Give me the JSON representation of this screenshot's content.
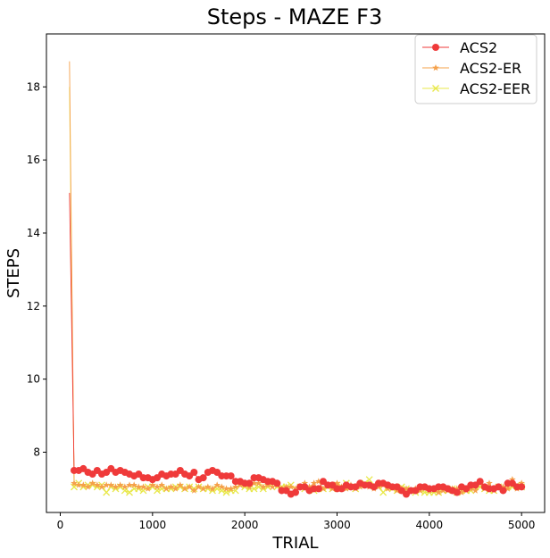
{
  "chart_data": {
    "type": "line",
    "title": "Steps - MAZE F3",
    "xlabel": "TRIAL",
    "ylabel": "STEPS",
    "xlim": [
      -150,
      5250
    ],
    "ylim": [
      6.35,
      19.45
    ],
    "xticks": [
      0,
      1000,
      2000,
      3000,
      4000,
      5000
    ],
    "yticks": [
      8,
      10,
      12,
      14,
      16,
      18
    ],
    "xtick_labels": [
      "0",
      "1000",
      "2000",
      "3000",
      "4000",
      "5000"
    ],
    "ytick_labels": [
      "8",
      "10",
      "12",
      "14",
      "16",
      "18"
    ],
    "grid": false,
    "legend_position": "top-right",
    "x": [
      100,
      150,
      200,
      250,
      300,
      350,
      400,
      450,
      500,
      550,
      600,
      650,
      700,
      750,
      800,
      850,
      900,
      950,
      1000,
      1050,
      1100,
      1150,
      1200,
      1250,
      1300,
      1350,
      1400,
      1450,
      1500,
      1550,
      1600,
      1650,
      1700,
      1750,
      1800,
      1850,
      1900,
      1950,
      2000,
      2050,
      2100,
      2150,
      2200,
      2250,
      2300,
      2350,
      2400,
      2450,
      2500,
      2550,
      2600,
      2650,
      2700,
      2750,
      2800,
      2850,
      2900,
      2950,
      3000,
      3050,
      3100,
      3150,
      3200,
      3250,
      3300,
      3350,
      3400,
      3450,
      3500,
      3550,
      3600,
      3650,
      3700,
      3750,
      3800,
      3850,
      3900,
      3950,
      4000,
      4050,
      4100,
      4150,
      4200,
      4250,
      4300,
      4350,
      4400,
      4450,
      4500,
      4550,
      4600,
      4650,
      4700,
      4750,
      4800,
      4850,
      4900,
      4950,
      5000
    ],
    "series": [
      {
        "name": "ACS2",
        "color": "#ef3a3a",
        "marker": "circle",
        "values": [
          15.1,
          7.5,
          7.5,
          7.55,
          7.45,
          7.4,
          7.5,
          7.4,
          7.45,
          7.55,
          7.45,
          7.5,
          7.45,
          7.4,
          7.35,
          7.4,
          7.3,
          7.3,
          7.25,
          7.3,
          7.4,
          7.35,
          7.4,
          7.4,
          7.5,
          7.4,
          7.35,
          7.45,
          7.25,
          7.3,
          7.45,
          7.5,
          7.45,
          7.35,
          7.35,
          7.35,
          7.2,
          7.2,
          7.15,
          7.15,
          7.3,
          7.3,
          7.25,
          7.2,
          7.2,
          7.15,
          6.95,
          6.95,
          6.85,
          6.9,
          7.05,
          7.05,
          6.95,
          7.0,
          7.0,
          7.2,
          7.1,
          7.1,
          7.0,
          7.0,
          7.1,
          7.05,
          7.05,
          7.15,
          7.1,
          7.1,
          7.05,
          7.15,
          7.15,
          7.1,
          7.05,
          7.05,
          6.95,
          6.85,
          6.95,
          6.95,
          7.05,
          7.05,
          7.0,
          7.0,
          7.05,
          7.05,
          7.0,
          6.95,
          6.9,
          7.05,
          7.0,
          7.1,
          7.1,
          7.2,
          7.05,
          7.0,
          7.0,
          7.05,
          6.95,
          7.15,
          7.15,
          7.05,
          7.05
        ]
      },
      {
        "name": "ACS2-ER",
        "color": "#f5a04a",
        "marker": "star",
        "values": [
          18.7,
          7.15,
          7.1,
          7.1,
          7.05,
          7.15,
          7.1,
          7.05,
          7.1,
          7.1,
          7.05,
          7.1,
          7.05,
          7.1,
          7.1,
          7.05,
          7.05,
          7.0,
          7.1,
          7.05,
          7.1,
          7.0,
          7.05,
          7.0,
          7.1,
          7.0,
          7.05,
          6.95,
          7.05,
          7.0,
          7.05,
          7.0,
          7.1,
          7.05,
          7.0,
          7.0,
          7.05,
          7.1,
          7.1,
          7.05,
          7.15,
          7.15,
          7.05,
          7.1,
          7.05,
          7.1,
          7.0,
          7.05,
          7.05,
          7.0,
          7.05,
          7.15,
          7.05,
          7.15,
          7.2,
          7.0,
          7.1,
          7.0,
          7.15,
          7.05,
          7.0,
          7.1,
          7.0,
          7.05,
          7.1,
          7.05,
          7.0,
          7.05,
          7.1,
          7.0,
          7.05,
          6.95,
          7.0,
          7.0,
          6.95,
          7.0,
          6.95,
          7.0,
          6.95,
          7.0,
          6.9,
          6.95,
          6.95,
          7.0,
          7.0,
          6.9,
          6.95,
          7.0,
          6.95,
          7.15,
          7.0,
          7.15,
          6.95,
          7.05,
          7.05,
          7.0,
          7.25,
          7.0,
          7.15
        ]
      },
      {
        "name": "ACS2-EER",
        "color": "#e8e84a",
        "marker": "x",
        "values": [
          18.0,
          7.05,
          7.15,
          7.05,
          7.1,
          7.1,
          7.05,
          7.1,
          6.9,
          7.05,
          7.0,
          7.05,
          6.95,
          6.9,
          7.0,
          7.0,
          6.95,
          7.05,
          7.05,
          6.95,
          7.0,
          7.0,
          7.0,
          7.05,
          7.05,
          7.0,
          7.05,
          7.0,
          7.05,
          7.0,
          7.0,
          6.95,
          7.0,
          6.95,
          6.9,
          6.95,
          6.95,
          7.1,
          7.05,
          7.0,
          7.0,
          7.05,
          7.0,
          7.05,
          7.15,
          7.05,
          7.05,
          7.05,
          7.1,
          7.0,
          7.05,
          7.0,
          7.0,
          6.95,
          7.0,
          7.0,
          7.05,
          7.0,
          7.1,
          7.05,
          7.15,
          7.05,
          7.0,
          7.1,
          7.15,
          7.25,
          7.1,
          7.1,
          6.9,
          7.05,
          7.0,
          6.95,
          7.05,
          7.0,
          6.95,
          6.9,
          6.95,
          6.9,
          6.9,
          6.9,
          6.9,
          6.95,
          6.95,
          7.0,
          6.9,
          6.95,
          6.95,
          6.95,
          7.05,
          7.05,
          7.0,
          6.95,
          6.95,
          7.05,
          7.0,
          7.05,
          7.05,
          7.1,
          7.05
        ]
      }
    ]
  }
}
